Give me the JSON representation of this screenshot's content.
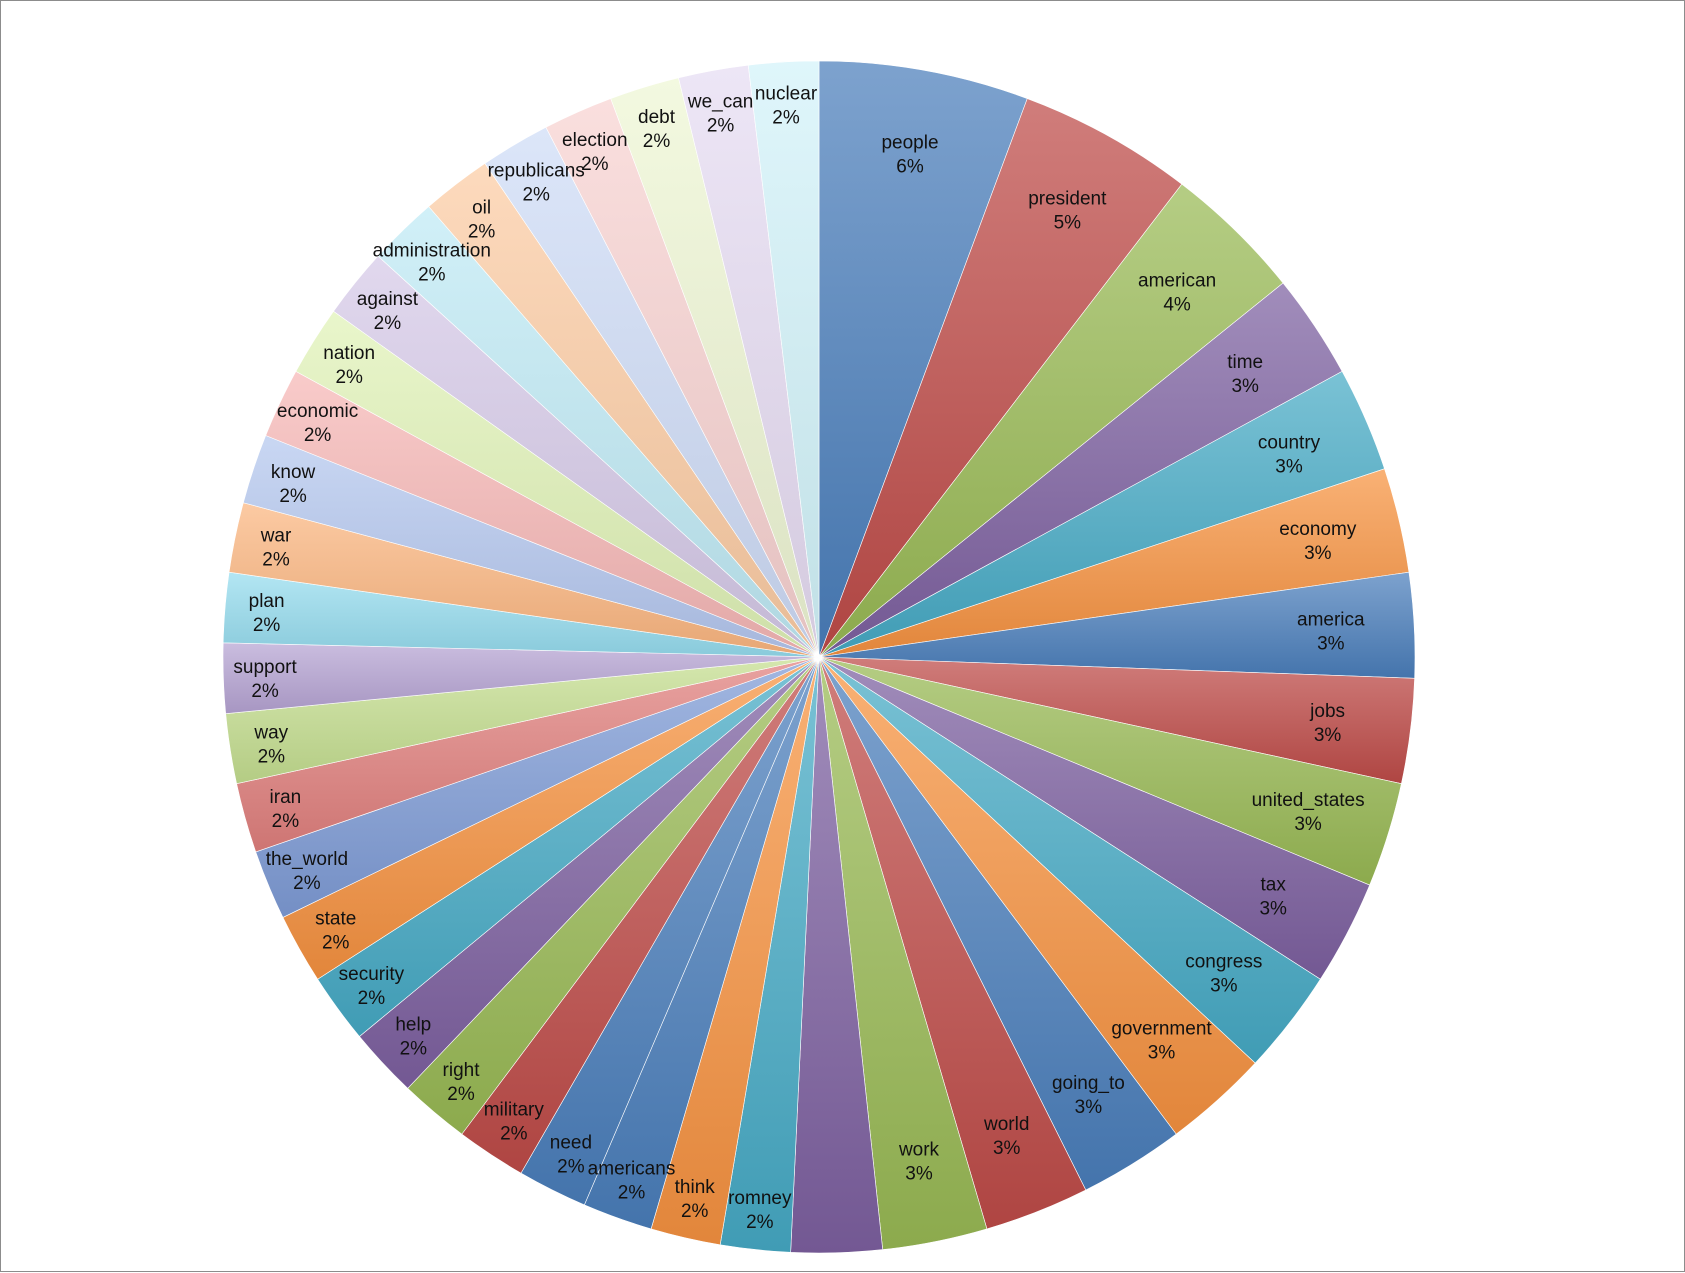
{
  "chart_data": {
    "type": "pie",
    "title": "",
    "start_angle_deg": 0,
    "direction": "clockwise",
    "gradient_fill": true,
    "slices": [
      {
        "label": "people",
        "value": 6,
        "display": "6%",
        "color": "#4a7ebb"
      },
      {
        "label": "president",
        "value": 5,
        "display": "5%",
        "color": "#be4b48"
      },
      {
        "label": "american",
        "value": 4,
        "display": "4%",
        "color": "#98b954"
      },
      {
        "label": "time",
        "value": 3,
        "display": "3%",
        "color": "#7d60a0"
      },
      {
        "label": "country",
        "value": 3,
        "display": "3%",
        "color": "#46aac5"
      },
      {
        "label": "economy",
        "value": 3,
        "display": "3%",
        "color": "#f69240"
      },
      {
        "label": "america",
        "value": 3,
        "display": "3%",
        "color": "#4a7ebb"
      },
      {
        "label": "jobs",
        "value": 3,
        "display": "3%",
        "color": "#be4b48"
      },
      {
        "label": "united_states",
        "value": 3,
        "display": "3%",
        "color": "#98b954"
      },
      {
        "label": "tax",
        "value": 3,
        "display": "3%",
        "color": "#7d60a0"
      },
      {
        "label": "congress",
        "value": 3,
        "display": "3%",
        "color": "#46aac5"
      },
      {
        "label": "government",
        "value": 3,
        "display": "3%",
        "color": "#f69240"
      },
      {
        "label": "going_to",
        "value": 3,
        "display": "3%",
        "color": "#4a7ebb"
      },
      {
        "label": "world",
        "value": 3,
        "display": "3%",
        "color": "#be4b48"
      },
      {
        "label": "work",
        "value": 3,
        "display": "3%",
        "color": "#98b954"
      },
      {
        "label": "",
        "value": 2.6,
        "display": "",
        "color": "#7d60a0"
      },
      {
        "label": "romney",
        "value": 2,
        "display": "2%",
        "color": "#46aac5"
      },
      {
        "label": "think",
        "value": 2,
        "display": "2%",
        "color": "#f69240"
      },
      {
        "label": "americans",
        "value": 2,
        "display": "2%",
        "color": "#4a7ebb"
      },
      {
        "label": "need",
        "value": 2,
        "display": "2%",
        "color": "#4a7ebb"
      },
      {
        "label": "military",
        "value": 2,
        "display": "2%",
        "color": "#be4b48"
      },
      {
        "label": "right",
        "value": 2,
        "display": "2%",
        "color": "#98b954"
      },
      {
        "label": "help",
        "value": 2,
        "display": "2%",
        "color": "#7d60a0"
      },
      {
        "label": "security",
        "value": 2,
        "display": "2%",
        "color": "#46aac5"
      },
      {
        "label": "state",
        "value": 2,
        "display": "2%",
        "color": "#f69240"
      },
      {
        "label": "the_world",
        "value": 2,
        "display": "2%",
        "color": "#7e9bd6"
      },
      {
        "label": "iran",
        "value": 2,
        "display": "2%",
        "color": "#e07f7d"
      },
      {
        "label": "way",
        "value": 2,
        "display": "2%",
        "color": "#c4de8f"
      },
      {
        "label": "support",
        "value": 2,
        "display": "2%",
        "color": "#b6a3d3"
      },
      {
        "label": "plan",
        "value": 2,
        "display": "2%",
        "color": "#95dcee"
      },
      {
        "label": "war",
        "value": 2,
        "display": "2%",
        "color": "#fbb57f"
      },
      {
        "label": "know",
        "value": 2,
        "display": "2%",
        "color": "#b4c7ef"
      },
      {
        "label": "economic",
        "value": 2,
        "display": "2%",
        "color": "#f6b7b6"
      },
      {
        "label": "nation",
        "value": 2,
        "display": "2%",
        "color": "#e0f2b7"
      },
      {
        "label": "against",
        "value": 2,
        "display": "2%",
        "color": "#d5c9e8"
      },
      {
        "label": "administration",
        "value": 2,
        "display": "2%",
        "color": "#bfeaf5"
      },
      {
        "label": "oil",
        "value": 2,
        "display": "2%",
        "color": "#fccca4"
      },
      {
        "label": "republicans",
        "value": 2,
        "display": "2%",
        "color": "#cfdcf7"
      },
      {
        "label": "election",
        "value": 2,
        "display": "2%",
        "color": "#f8d2d1"
      },
      {
        "label": "debt",
        "value": 2,
        "display": "2%",
        "color": "#eef6d4"
      },
      {
        "label": "we_can",
        "value": 2,
        "display": "2%",
        "color": "#e6dcf2"
      },
      {
        "label": "nuclear",
        "value": 2,
        "display": "2%",
        "color": "#d2f3fa"
      }
    ]
  }
}
